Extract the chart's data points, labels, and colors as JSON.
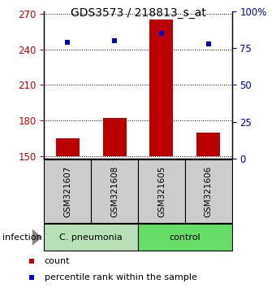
{
  "title": "GDS3573 / 218813_s_at",
  "samples": [
    "GSM321607",
    "GSM321608",
    "GSM321605",
    "GSM321606"
  ],
  "counts": [
    165,
    182,
    265,
    170
  ],
  "percentiles": [
    79,
    80,
    85,
    78
  ],
  "ylim_left": [
    148,
    272
  ],
  "ylim_right": [
    0,
    100
  ],
  "yticks_left": [
    150,
    180,
    210,
    240,
    270
  ],
  "yticks_right": [
    0,
    25,
    50,
    75,
    100
  ],
  "ytick_right_labels": [
    "0",
    "25",
    "50",
    "75",
    "100%"
  ],
  "ybase": 150,
  "groups": [
    {
      "label": "C. pneumonia",
      "samples": [
        0,
        1
      ],
      "color": "#b8e0b8"
    },
    {
      "label": "control",
      "samples": [
        2,
        3
      ],
      "color": "#66dd66"
    }
  ],
  "group_label_prefix": "infection",
  "bar_color": "#bb0000",
  "dot_color": "#0000cc",
  "bar_width": 0.5,
  "sample_box_color": "#cccccc",
  "background_color": "#ffffff",
  "legend_items": [
    {
      "label": "count",
      "color": "#bb0000"
    },
    {
      "label": "percentile rank within the sample",
      "color": "#0000cc"
    }
  ],
  "ytick_left_color": "#cc0000",
  "ytick_right_color": "#0000bb",
  "title_fontsize": 10
}
